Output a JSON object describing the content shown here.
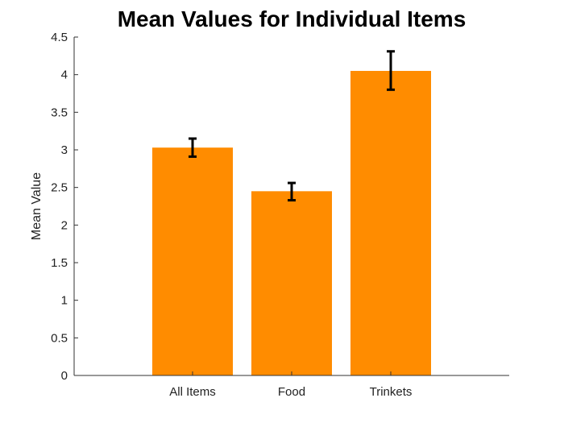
{
  "chart_data": {
    "type": "bar",
    "title": "Mean Values for Individual Items",
    "xlabel": "",
    "ylabel": "Mean Value",
    "categories": [
      "All Items",
      "Food",
      "Trinkets"
    ],
    "values": [
      3.03,
      2.45,
      4.05
    ],
    "error_low": [
      2.91,
      2.33,
      3.8
    ],
    "error_high": [
      3.15,
      2.56,
      4.31
    ],
    "ylim": [
      0,
      4.5
    ],
    "yticks": [
      "0",
      "0.5",
      "1",
      "1.5",
      "2",
      "2.5",
      "3",
      "3.5",
      "4",
      "4.5"
    ],
    "bar_color": "#ff8c00",
    "error_color": "#000000",
    "grid": false,
    "legend": "none"
  }
}
